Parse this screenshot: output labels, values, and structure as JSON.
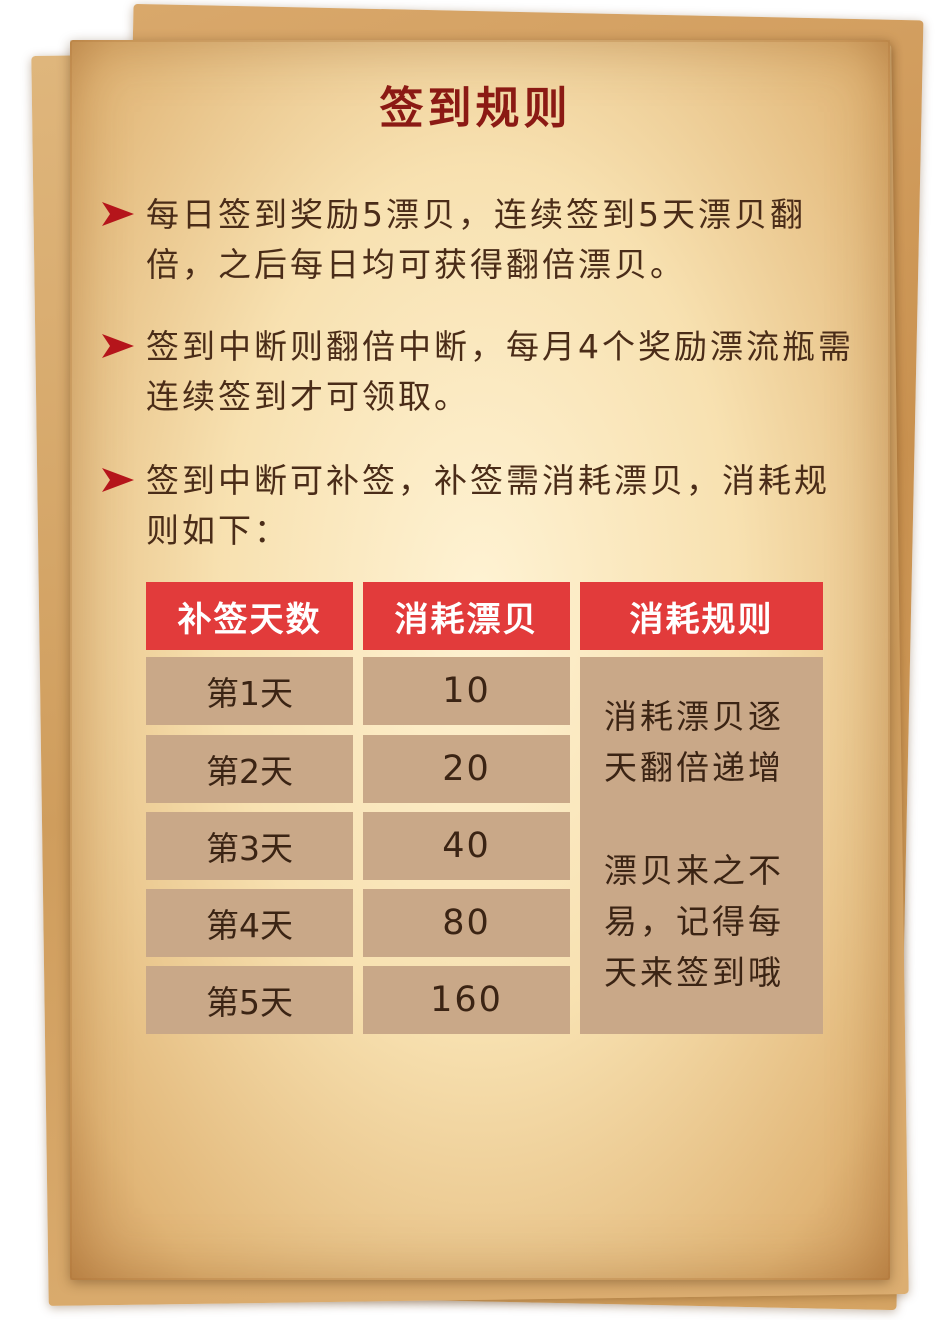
{
  "title": "签到规则",
  "rules": [
    "每日签到奖励5漂贝，连续签到5天漂贝翻倍，之后每日均可获得翻倍漂贝。",
    "签到中断则翻倍中断，每月4个奖励漂流瓶需连续签到才可领取。",
    "签到中断可补签，补签需消耗漂贝，消耗规则如下："
  ],
  "table": {
    "headers": [
      "补签天数",
      "消耗漂贝",
      "消耗规则"
    ],
    "rows": [
      {
        "day": "第1天",
        "cost": "10"
      },
      {
        "day": "第2天",
        "cost": "20"
      },
      {
        "day": "第3天",
        "cost": "40"
      },
      {
        "day": "第4天",
        "cost": "80"
      },
      {
        "day": "第5天",
        "cost": "160"
      }
    ],
    "rule_note_1": "消耗漂贝逐天翻倍递增",
    "rule_note_2": "漂贝来之不易，记得每天来签到哦"
  },
  "colors": {
    "title": "#8b1a14",
    "header_bg": "#e23b3b",
    "cell_bg": "#c9a888",
    "arrow": "#b5151b"
  },
  "icons": {
    "bullet": "arrow-bullet-icon"
  }
}
